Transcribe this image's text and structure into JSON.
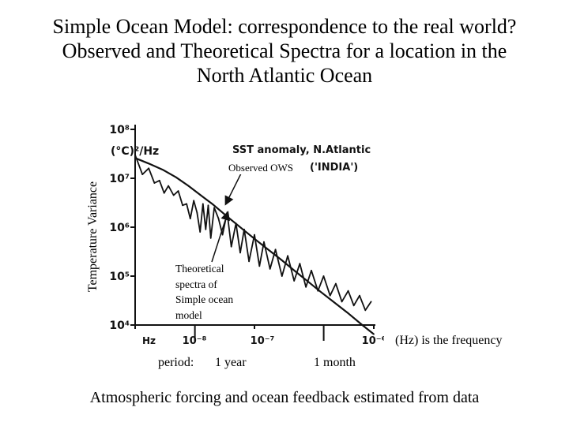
{
  "title": {
    "line1": "Simple Ocean Model: correspondence to the real world?",
    "line2": "Observed and Theoretical Spectra for a location in the",
    "line3": "North Atlantic Ocean"
  },
  "chart_data": {
    "type": "line",
    "scan_title": "SST anomaly, N.Atlantic",
    "scan_subtitle": "('INDIA')",
    "ylabel": "Temperature Variance",
    "yunits": "(°C)²/Hz",
    "xunits": "Hz",
    "xscale": "log",
    "yscale": "log",
    "xlim": [
      1e-08,
      1e-06
    ],
    "ylim": [
      10000.0,
      100000000.0
    ],
    "y_tick_labels": [
      "10⁸",
      "10⁷",
      "10⁶",
      "10⁵",
      "10⁴"
    ],
    "x_tick_labels": [
      "10⁻⁸",
      "10⁻⁷",
      "10⁻⁶"
    ],
    "series": [
      {
        "name": "Observed OWS",
        "style": "jagged",
        "x": [
          1e-08,
          1.15e-08,
          1.3e-08,
          1.45e-08,
          1.6e-08,
          1.75e-08,
          1.9e-08,
          2.1e-08,
          2.3e-08,
          2.5e-08,
          2.7e-08,
          2.9e-08,
          3.1e-08,
          3.3e-08,
          3.5e-08,
          3.7e-08,
          3.9e-08,
          4.1e-08,
          4.3e-08,
          4.6e-08,
          5e-08,
          5.4e-08,
          5.9e-08,
          6.4e-08,
          7e-08,
          7.6e-08,
          8.2e-08,
          9e-08,
          1e-07,
          1.1e-07,
          1.2e-07,
          1.35e-07,
          1.5e-07,
          1.7e-07,
          1.9e-07,
          2.15e-07,
          2.4e-07,
          2.7e-07,
          3e-07,
          3.4e-07,
          3.8e-07,
          4.3e-07,
          4.8e-07,
          5.4e-07,
          6.1e-07,
          6.8e-07,
          7.6e-07,
          8.5e-07,
          9.5e-07
        ],
        "y": [
          30000000.0,
          12000000.0,
          16000000.0,
          8000000.0,
          9000000.0,
          5000000.0,
          7000000.0,
          4500000.0,
          5500000.0,
          2800000.0,
          3000000.0,
          1500000.0,
          3500000.0,
          2000000.0,
          800000.0,
          3000000.0,
          900000.0,
          2800000.0,
          600000.0,
          2500000.0,
          1500000.0,
          700000.0,
          2000000.0,
          400000.0,
          1200000.0,
          300000.0,
          900000.0,
          200000.0,
          700000.0,
          160000.0,
          500000.0,
          140000.0,
          350000.0,
          100000.0,
          260000.0,
          80000.0,
          180000.0,
          60000.0,
          130000.0,
          50000.0,
          100000.0,
          40000.0,
          70000.0,
          30000.0,
          50000.0,
          25000.0,
          40000.0,
          20000.0,
          30000.0
        ]
      },
      {
        "name": "Theoretical spectra of Simple ocean model",
        "style": "smooth",
        "x": [
          1e-08,
          1.3e-08,
          1.7e-08,
          2.2e-08,
          2.8e-08,
          3.5e-08,
          4.5e-08,
          6e-08,
          8e-08,
          1e-07,
          1.3e-07,
          1.7e-07,
          2.2e-07,
          2.8e-07,
          3.5e-07,
          4.5e-07,
          6e-07,
          8e-07,
          1e-06
        ],
        "y": [
          26000000.0,
          20000000.0,
          15000000.0,
          10500000.0,
          7000000.0,
          4600000.0,
          2900000.0,
          1600000.0,
          900000.0,
          580000.0,
          350000.0,
          210000.0,
          125000.0,
          78000.0,
          50000.0,
          31000.0,
          18000.0,
          10000.0,
          6500.0
        ]
      }
    ]
  },
  "annotations": {
    "observed_label": "Observed OWS",
    "theoretical_label": [
      "Theoretical",
      "spectra of",
      "Simple ocean",
      "model"
    ],
    "frequency_note": "(Hz) is the frequency",
    "period_label": "period:",
    "period_year": "1 year",
    "period_month": "1 month"
  },
  "footer": "Atmospheric forcing and ocean feedback estimated from data",
  "colors": {
    "text": "#000000",
    "ink": "#111111",
    "background": "#ffffff"
  }
}
